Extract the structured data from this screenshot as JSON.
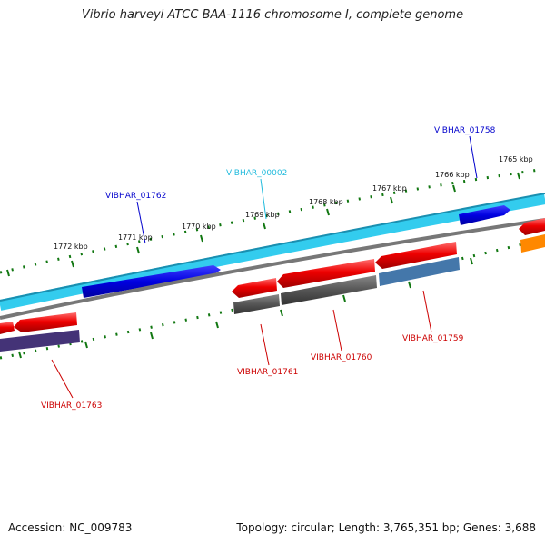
{
  "title": "Vibrio harveyi ATCC BAA-1116 chromosome I, complete genome",
  "footer": {
    "accession": "Accession: NC_009783",
    "summary": "Topology: circular; Length: 3,765,351 bp; Genes: 3,688"
  },
  "colors": {
    "forward_gene": "#0000e0",
    "forward_other": "#33ccee",
    "reverse_cds": "#e60000",
    "reverse_cog_gray": "#555555",
    "reverse_cog_blue": "#4477aa",
    "reverse_cog_purple": "#443377",
    "reverse_cog_orange": "#ff8800",
    "tick_marks": "#117711",
    "backbone": "#777777"
  },
  "ticks": [
    {
      "label": "1765 kbp"
    },
    {
      "label": "1766 kbp"
    },
    {
      "label": "1767 kbp"
    },
    {
      "label": "1768 kbp"
    },
    {
      "label": "1769 kbp"
    },
    {
      "label": "1770 kbp"
    },
    {
      "label": "1771 kbp"
    },
    {
      "label": "1772 kbp"
    }
  ],
  "gene_labels": [
    {
      "id": "VIBHAR_01758",
      "color": "#0000cc"
    },
    {
      "id": "VIBHAR_00002",
      "color": "#22bbdd"
    },
    {
      "id": "VIBHAR_01762",
      "color": "#0000cc"
    },
    {
      "id": "VIBHAR_01759",
      "color": "#cc0000"
    },
    {
      "id": "VIBHAR_01760",
      "color": "#cc0000"
    },
    {
      "id": "VIBHAR_01761",
      "color": "#cc0000"
    },
    {
      "id": "VIBHAR_01763",
      "color": "#cc0000"
    }
  ]
}
